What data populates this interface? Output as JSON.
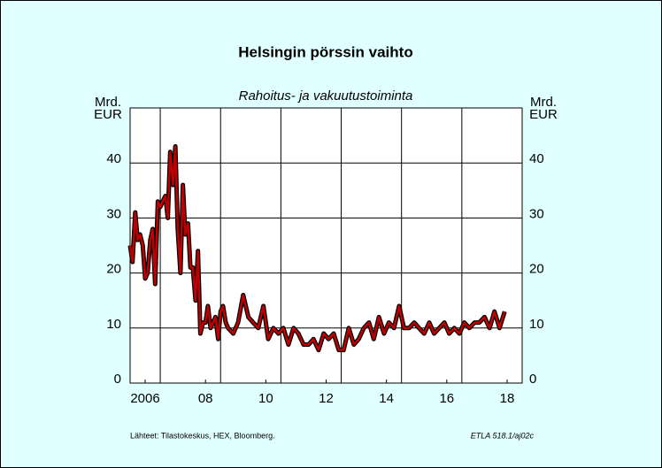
{
  "chart_data": {
    "type": "line",
    "title": "Helsingin pörssin vaihto",
    "subtitle": "Rahoitus- ja vakuutustoiminta",
    "y_label": [
      "Mrd.",
      "EUR"
    ],
    "y2_label": [
      "Mrd.",
      "EUR"
    ],
    "source": "Lähteet:  Tilastokeskus, HEX, Bloomberg.",
    "code": "ETLA 518.1/aj02c",
    "xlim": [
      2006,
      2019
    ],
    "ylim": [
      0,
      50
    ],
    "yticks": [
      0,
      10,
      20,
      30,
      40
    ],
    "xticks": [
      {
        "value": 2006.5,
        "label": "2006"
      },
      {
        "value": 2008.5,
        "label": "08"
      },
      {
        "value": 2010.5,
        "label": "10"
      },
      {
        "value": 2012.5,
        "label": "12"
      },
      {
        "value": 2014.5,
        "label": "14"
      },
      {
        "value": 2016.5,
        "label": "16"
      },
      {
        "value": 2018.5,
        "label": "18"
      }
    ],
    "xgrid": [
      2007,
      2009,
      2011,
      2013,
      2015,
      2017
    ],
    "grid": true,
    "series": [
      {
        "color": "#c00000",
        "x": [
          2006.0,
          2006.08,
          2006.17,
          2006.25,
          2006.33,
          2006.42,
          2006.5,
          2006.58,
          2006.67,
          2006.75,
          2006.83,
          2006.92,
          2007.0,
          2007.08,
          2007.17,
          2007.25,
          2007.33,
          2007.42,
          2007.5,
          2007.58,
          2007.67,
          2007.75,
          2007.83,
          2007.92,
          2008.0,
          2008.08,
          2008.17,
          2008.25,
          2008.33,
          2008.42,
          2008.5,
          2008.58,
          2008.67,
          2008.75,
          2008.83,
          2008.92,
          2009.0,
          2009.08,
          2009.17,
          2009.25,
          2009.42,
          2009.58,
          2009.75,
          2009.92,
          2010.08,
          2010.25,
          2010.42,
          2010.58,
          2010.75,
          2010.92,
          2011.08,
          2011.25,
          2011.42,
          2011.58,
          2011.75,
          2011.92,
          2012.08,
          2012.25,
          2012.42,
          2012.58,
          2012.75,
          2012.92,
          2013.08,
          2013.25,
          2013.42,
          2013.58,
          2013.75,
          2013.92,
          2014.08,
          2014.25,
          2014.42,
          2014.58,
          2014.75,
          2014.92,
          2015.08,
          2015.25,
          2015.42,
          2015.58,
          2015.75,
          2015.92,
          2016.08,
          2016.25,
          2016.42,
          2016.58,
          2016.75,
          2016.92,
          2017.08,
          2017.25,
          2017.42,
          2017.58,
          2017.75,
          2017.92,
          2018.08,
          2018.25,
          2018.42
        ],
        "values": [
          25,
          22,
          31,
          26,
          27,
          25,
          19,
          20,
          26,
          28,
          18,
          33,
          32,
          33,
          34,
          30,
          42,
          36,
          43,
          28,
          20,
          36,
          27,
          29,
          21,
          21,
          15,
          24,
          9,
          11,
          11,
          14,
          10,
          11,
          12,
          8,
          13,
          14,
          11,
          10,
          9,
          11,
          16,
          12,
          11,
          10,
          14,
          8,
          10,
          9,
          10,
          7,
          10,
          9,
          7,
          7,
          8,
          6,
          9,
          8,
          9,
          6,
          6,
          10,
          7,
          8,
          10,
          11,
          8,
          12,
          9,
          11,
          10,
          14,
          10,
          10,
          11,
          10,
          9,
          11,
          9,
          10,
          11,
          9,
          10,
          9,
          11,
          10,
          11,
          11,
          12,
          10,
          13,
          10,
          13
        ]
      }
    ]
  }
}
